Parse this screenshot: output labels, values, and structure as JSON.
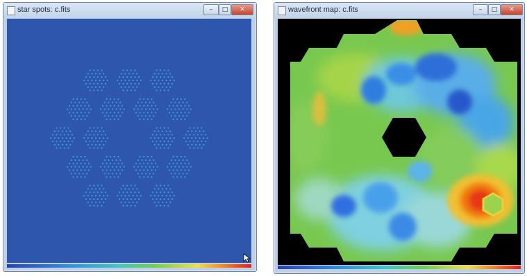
{
  "windows": [
    {
      "title": "star spots: c.fits",
      "buttons": {
        "minimize": "–",
        "maximize": "□",
        "close": "✕"
      }
    },
    {
      "title": "wavefront map: c.fits",
      "buttons": {
        "minimize": "–",
        "maximize": "□",
        "close": "✕"
      }
    }
  ],
  "colors": {
    "spots_background": "#2e56ad",
    "spot_color": "#41a8e8",
    "wavefront_background": "#000000"
  },
  "icons": [
    "window-app-icon",
    "minimize-icon",
    "maximize-icon",
    "close-icon",
    "mouse-cursor-icon"
  ]
}
